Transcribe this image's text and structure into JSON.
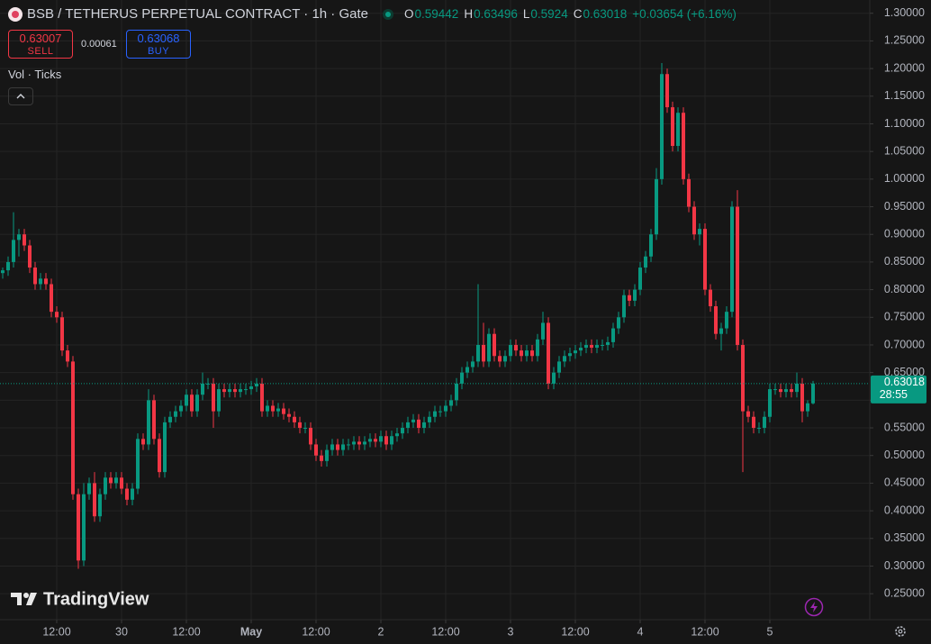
{
  "chart_data": {
    "type": "candlestick",
    "title": "BSB / TETHERUS PERPETUAL CONTRACT · 1h · Gate",
    "ohlc_labels": [
      "O",
      "H",
      "L",
      "C"
    ],
    "change_label": "+0.03654 (+6.16%)",
    "trade_panel": {
      "sell_price": 0.63007,
      "sell_label": "SELL",
      "spread": 0.00061,
      "buy_price": 0.63068,
      "buy_label": "BUY"
    },
    "indicator_label": "Vol · Ticks",
    "brand": "TradingView",
    "countdown": "28:55",
    "up_color": "#089981",
    "down_color": "#f23645",
    "grid": true,
    "price_line": true,
    "xlim": [
      -0.5,
      160.5
    ],
    "xticks": [
      {
        "value": 10,
        "label": "12:00"
      },
      {
        "value": 22,
        "label": "30"
      },
      {
        "value": 34,
        "label": "12:00"
      },
      {
        "value": 46,
        "label": "May"
      },
      {
        "value": 58,
        "label": "12:00"
      },
      {
        "value": 70,
        "label": "2"
      },
      {
        "value": 82,
        "label": "12:00"
      },
      {
        "value": 94,
        "label": "3"
      },
      {
        "value": 106,
        "label": "12:00"
      },
      {
        "value": 118,
        "label": "4"
      },
      {
        "value": 130,
        "label": "12:00"
      },
      {
        "value": 142,
        "label": "5"
      }
    ],
    "ylim": [
      0.203,
      1.324
    ],
    "yticks": [
      {
        "value": 0.25,
        "label": "0.25000"
      },
      {
        "value": 0.3,
        "label": "0.30000"
      },
      {
        "value": 0.35,
        "label": "0.35000"
      },
      {
        "value": 0.4,
        "label": "0.40000"
      },
      {
        "value": 0.45,
        "label": "0.45000"
      },
      {
        "value": 0.5,
        "label": "0.50000"
      },
      {
        "value": 0.55,
        "label": "0.55000"
      },
      {
        "value": 0.6,
        "label": "0.60000"
      },
      {
        "value": 0.65,
        "label": "0.65000"
      },
      {
        "value": 0.7,
        "label": "0.70000"
      },
      {
        "value": 0.75,
        "label": "0.75000"
      },
      {
        "value": 0.8,
        "label": "0.80000"
      },
      {
        "value": 0.85,
        "label": "0.85000"
      },
      {
        "value": 0.9,
        "label": "0.90000"
      },
      {
        "value": 0.95,
        "label": "0.95000"
      },
      {
        "value": 1.0,
        "label": "1.00000"
      },
      {
        "value": 1.05,
        "label": "1.05000"
      },
      {
        "value": 1.1,
        "label": "1.10000"
      },
      {
        "value": 1.15,
        "label": "1.15000"
      },
      {
        "value": 1.2,
        "label": "1.20000"
      },
      {
        "value": 1.25,
        "label": "1.25000"
      },
      {
        "value": 1.3,
        "label": "1.30000"
      }
    ],
    "open": [
      0.83,
      0.835,
      0.85,
      0.89,
      0.9,
      0.88,
      0.84,
      0.81,
      0.82,
      0.81,
      0.76,
      0.75,
      0.69,
      0.67,
      0.43,
      0.31,
      0.43,
      0.45,
      0.39,
      0.43,
      0.46,
      0.45,
      0.46,
      0.44,
      0.42,
      0.44,
      0.53,
      0.52,
      0.6,
      0.53,
      0.47,
      0.56,
      0.57,
      0.58,
      0.59,
      0.61,
      0.58,
      0.61,
      0.63,
      0.63,
      0.58,
      0.62,
      0.615,
      0.62,
      0.615,
      0.62,
      0.62,
      0.625,
      0.63,
      0.58,
      0.59,
      0.58,
      0.585,
      0.575,
      0.57,
      0.56,
      0.55,
      0.55,
      0.52,
      0.5,
      0.49,
      0.51,
      0.52,
      0.51,
      0.52,
      0.52,
      0.525,
      0.52,
      0.525,
      0.53,
      0.525,
      0.535,
      0.52,
      0.535,
      0.54,
      0.55,
      0.56,
      0.565,
      0.55,
      0.56,
      0.57,
      0.58,
      0.58,
      0.59,
      0.6,
      0.63,
      0.65,
      0.66,
      0.67,
      0.7,
      0.67,
      0.72,
      0.68,
      0.67,
      0.68,
      0.7,
      0.69,
      0.68,
      0.69,
      0.68,
      0.71,
      0.74,
      0.63,
      0.65,
      0.67,
      0.68,
      0.685,
      0.69,
      0.695,
      0.7,
      0.695,
      0.7,
      0.7,
      0.705,
      0.73,
      0.75,
      0.79,
      0.78,
      0.8,
      0.84,
      0.86,
      0.9,
      1.0,
      1.19,
      1.13,
      1.06,
      1.12,
      1.0,
      0.95,
      0.9,
      0.91,
      0.8,
      0.77,
      0.72,
      0.73,
      0.76,
      0.95,
      0.7,
      0.58,
      0.57,
      0.55,
      0.55,
      0.57,
      0.62,
      0.62,
      0.615,
      0.62,
      0.615,
      0.63,
      0.58,
      0.59442
    ],
    "high": [
      0.84,
      0.86,
      0.94,
      0.91,
      0.91,
      0.89,
      0.85,
      0.83,
      0.83,
      0.82,
      0.77,
      0.76,
      0.7,
      0.68,
      0.44,
      0.45,
      0.46,
      0.47,
      0.44,
      0.47,
      0.47,
      0.47,
      0.47,
      0.45,
      0.45,
      0.54,
      0.54,
      0.62,
      0.61,
      0.54,
      0.57,
      0.58,
      0.59,
      0.6,
      0.62,
      0.62,
      0.62,
      0.65,
      0.64,
      0.64,
      0.63,
      0.63,
      0.63,
      0.63,
      0.63,
      0.63,
      0.635,
      0.64,
      0.64,
      0.6,
      0.6,
      0.595,
      0.595,
      0.585,
      0.58,
      0.57,
      0.56,
      0.56,
      0.53,
      0.51,
      0.52,
      0.53,
      0.53,
      0.53,
      0.53,
      0.535,
      0.535,
      0.535,
      0.54,
      0.54,
      0.545,
      0.545,
      0.545,
      0.55,
      0.56,
      0.57,
      0.575,
      0.575,
      0.57,
      0.58,
      0.59,
      0.59,
      0.6,
      0.61,
      0.64,
      0.66,
      0.67,
      0.68,
      0.81,
      0.74,
      0.73,
      0.73,
      0.69,
      0.69,
      0.71,
      0.71,
      0.7,
      0.7,
      0.7,
      0.72,
      0.76,
      0.75,
      0.66,
      0.68,
      0.69,
      0.695,
      0.7,
      0.705,
      0.71,
      0.71,
      0.71,
      0.71,
      0.715,
      0.74,
      0.76,
      0.8,
      0.8,
      0.81,
      0.85,
      0.87,
      0.91,
      1.02,
      1.21,
      1.2,
      1.14,
      1.13,
      1.13,
      1.01,
      0.96,
      0.92,
      0.92,
      0.81,
      0.78,
      0.74,
      0.77,
      0.96,
      0.98,
      0.71,
      0.59,
      0.58,
      0.56,
      0.58,
      0.63,
      0.63,
      0.63,
      0.63,
      0.63,
      0.65,
      0.64,
      0.6,
      0.63496
    ],
    "low": [
      0.82,
      0.825,
      0.84,
      0.86,
      0.87,
      0.83,
      0.8,
      0.8,
      0.8,
      0.75,
      0.74,
      0.68,
      0.66,
      0.42,
      0.295,
      0.3,
      0.42,
      0.38,
      0.38,
      0.42,
      0.44,
      0.44,
      0.43,
      0.41,
      0.41,
      0.43,
      0.51,
      0.51,
      0.52,
      0.46,
      0.46,
      0.55,
      0.56,
      0.57,
      0.58,
      0.57,
      0.57,
      0.6,
      0.62,
      0.55,
      0.57,
      0.605,
      0.605,
      0.605,
      0.605,
      0.61,
      0.61,
      0.615,
      0.57,
      0.57,
      0.57,
      0.57,
      0.565,
      0.56,
      0.55,
      0.54,
      0.54,
      0.51,
      0.49,
      0.48,
      0.48,
      0.5,
      0.5,
      0.5,
      0.51,
      0.51,
      0.51,
      0.51,
      0.515,
      0.515,
      0.515,
      0.51,
      0.51,
      0.525,
      0.53,
      0.54,
      0.55,
      0.54,
      0.54,
      0.55,
      0.56,
      0.57,
      0.57,
      0.58,
      0.59,
      0.62,
      0.64,
      0.65,
      0.66,
      0.66,
      0.66,
      0.67,
      0.66,
      0.66,
      0.67,
      0.68,
      0.67,
      0.67,
      0.67,
      0.67,
      0.7,
      0.62,
      0.62,
      0.64,
      0.66,
      0.67,
      0.675,
      0.68,
      0.685,
      0.685,
      0.685,
      0.69,
      0.69,
      0.695,
      0.72,
      0.74,
      0.77,
      0.77,
      0.79,
      0.83,
      0.85,
      0.89,
      0.99,
      1.12,
      1.05,
      1.05,
      0.99,
      0.94,
      0.89,
      0.88,
      0.79,
      0.76,
      0.71,
      0.69,
      0.72,
      0.75,
      0.69,
      0.47,
      0.56,
      0.54,
      0.54,
      0.54,
      0.56,
      0.61,
      0.605,
      0.605,
      0.605,
      0.605,
      0.56,
      0.57,
      0.5924
    ],
    "close": [
      0.835,
      0.85,
      0.89,
      0.9,
      0.88,
      0.84,
      0.81,
      0.82,
      0.81,
      0.76,
      0.75,
      0.69,
      0.67,
      0.43,
      0.31,
      0.43,
      0.45,
      0.39,
      0.43,
      0.46,
      0.45,
      0.46,
      0.44,
      0.42,
      0.44,
      0.53,
      0.52,
      0.6,
      0.53,
      0.47,
      0.56,
      0.57,
      0.58,
      0.59,
      0.61,
      0.58,
      0.61,
      0.63,
      0.63,
      0.58,
      0.62,
      0.615,
      0.62,
      0.615,
      0.62,
      0.62,
      0.625,
      0.63,
      0.58,
      0.59,
      0.58,
      0.585,
      0.575,
      0.57,
      0.56,
      0.55,
      0.55,
      0.52,
      0.5,
      0.49,
      0.51,
      0.52,
      0.51,
      0.52,
      0.52,
      0.525,
      0.52,
      0.525,
      0.53,
      0.525,
      0.535,
      0.52,
      0.535,
      0.54,
      0.55,
      0.56,
      0.565,
      0.55,
      0.56,
      0.57,
      0.58,
      0.58,
      0.59,
      0.6,
      0.63,
      0.65,
      0.66,
      0.67,
      0.7,
      0.67,
      0.72,
      0.68,
      0.67,
      0.68,
      0.7,
      0.69,
      0.68,
      0.69,
      0.68,
      0.71,
      0.74,
      0.63,
      0.65,
      0.67,
      0.68,
      0.685,
      0.69,
      0.695,
      0.7,
      0.695,
      0.7,
      0.7,
      0.705,
      0.73,
      0.75,
      0.79,
      0.78,
      0.8,
      0.84,
      0.86,
      0.9,
      1.0,
      1.19,
      1.13,
      1.06,
      1.12,
      1.0,
      0.95,
      0.9,
      0.91,
      0.8,
      0.77,
      0.72,
      0.73,
      0.76,
      0.95,
      0.7,
      0.58,
      0.57,
      0.55,
      0.55,
      0.57,
      0.62,
      0.62,
      0.615,
      0.62,
      0.615,
      0.63,
      0.58,
      0.59442,
      0.63018
    ]
  }
}
